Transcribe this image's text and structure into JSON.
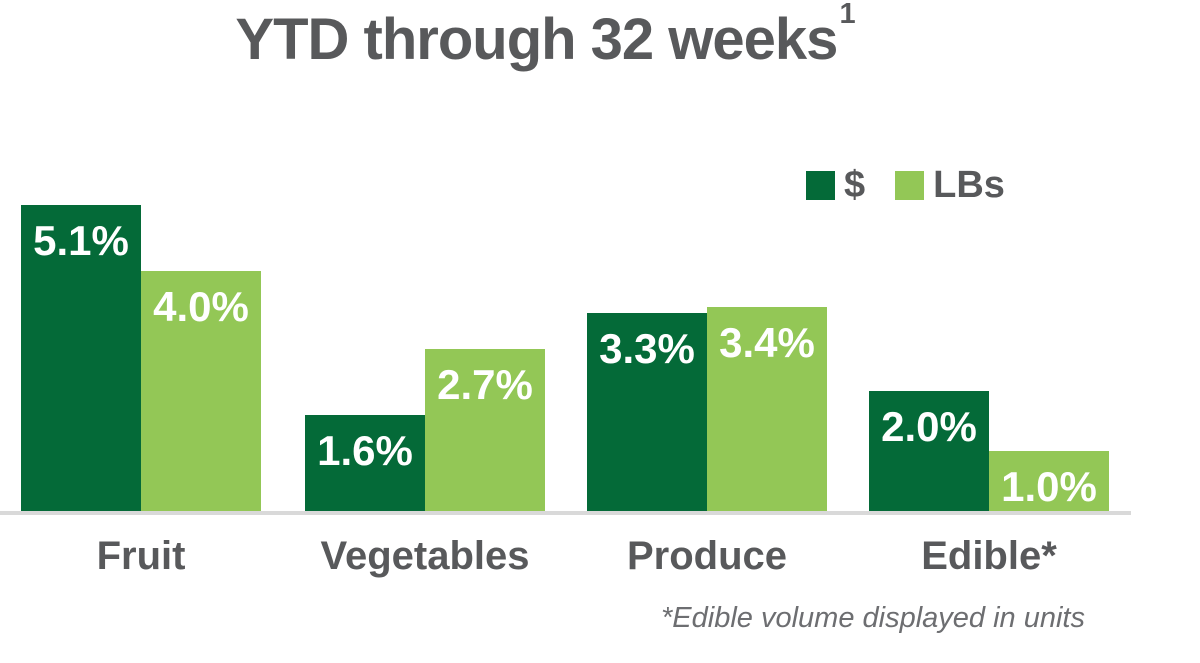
{
  "title": {
    "text": "YTD through 32 weeks",
    "superscript": "1"
  },
  "legend": {
    "items": [
      {
        "label": "$"
      },
      {
        "label": "LBs"
      }
    ]
  },
  "footnote": "*Edible volume displayed in units",
  "colors": {
    "dollar_green": "#046A38",
    "lbs_green": "#93C756",
    "title_gray": "#58595B",
    "footnote_gray": "#6D6E71",
    "axis_gray": "#D9D9D9",
    "bar_label_white": "#FFFFFF"
  },
  "chart_data": {
    "type": "bar",
    "title": "YTD through 32 weeks¹",
    "categories": [
      "Fruit",
      "Vegetables",
      "Produce",
      "Edible*"
    ],
    "category_ids": [
      "fruit",
      "vegetables",
      "produce",
      "edible"
    ],
    "series": [
      {
        "id": "dollar",
        "name": "$",
        "color": "#046A38",
        "values": [
          5.1,
          1.6,
          3.3,
          2.0
        ],
        "value_labels": [
          "5.1%",
          "1.6%",
          "3.3%",
          "2.0%"
        ]
      },
      {
        "id": "lbs",
        "name": "LBs",
        "color": "#93C756",
        "values": [
          4.0,
          2.7,
          3.4,
          1.0
        ],
        "value_labels": [
          "4.0%",
          "2.7%",
          "3.4%",
          "1.0%"
        ]
      }
    ],
    "xlabel": "",
    "ylabel": "",
    "ylim": [
      0,
      5.5
    ],
    "grid": false,
    "axis_ticks_visible": false,
    "legend_position": "top-right",
    "value_label_format": "percent_one_decimal",
    "footnote": "*Edible volume displayed in units"
  }
}
